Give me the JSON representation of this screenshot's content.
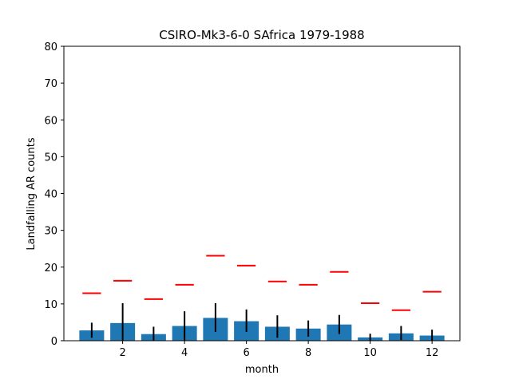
{
  "chart_data": {
    "type": "bar",
    "title": "CSIRO-Mk3-6-0 SAfrica 1979-1988",
    "xlabel": "month",
    "ylabel": "Landfalling AR counts",
    "xlim": [
      0.1,
      12.9
    ],
    "ylim": [
      0,
      80
    ],
    "x_ticks": [
      2,
      4,
      6,
      8,
      10,
      12
    ],
    "y_ticks": [
      0,
      10,
      20,
      30,
      40,
      50,
      60,
      70,
      80
    ],
    "categories": [
      1,
      2,
      3,
      4,
      5,
      6,
      7,
      8,
      9,
      10,
      11,
      12
    ],
    "series": [
      {
        "values": [
          2.8,
          4.8,
          1.8,
          4.0,
          6.2,
          5.3,
          3.8,
          3.3,
          4.4,
          0.9,
          2.0,
          1.4
        ],
        "error_low": [
          0.8,
          0.0,
          0.0,
          0.0,
          2.4,
          2.4,
          0.8,
          1.1,
          1.8,
          0.0,
          0.2,
          0.0
        ],
        "error_high": [
          4.9,
          10.2,
          3.8,
          8.0,
          10.2,
          8.5,
          6.9,
          5.5,
          7.0,
          1.9,
          4.0,
          3.0
        ],
        "color": "#1f77b4",
        "error_color": "#000000"
      },
      {
        "type": "marker",
        "values": [
          12.9,
          16.3,
          11.3,
          15.2,
          23.1,
          20.4,
          16.1,
          15.2,
          18.7,
          10.2,
          8.3,
          13.3
        ],
        "color": "#ff0000"
      }
    ],
    "grid": false
  }
}
